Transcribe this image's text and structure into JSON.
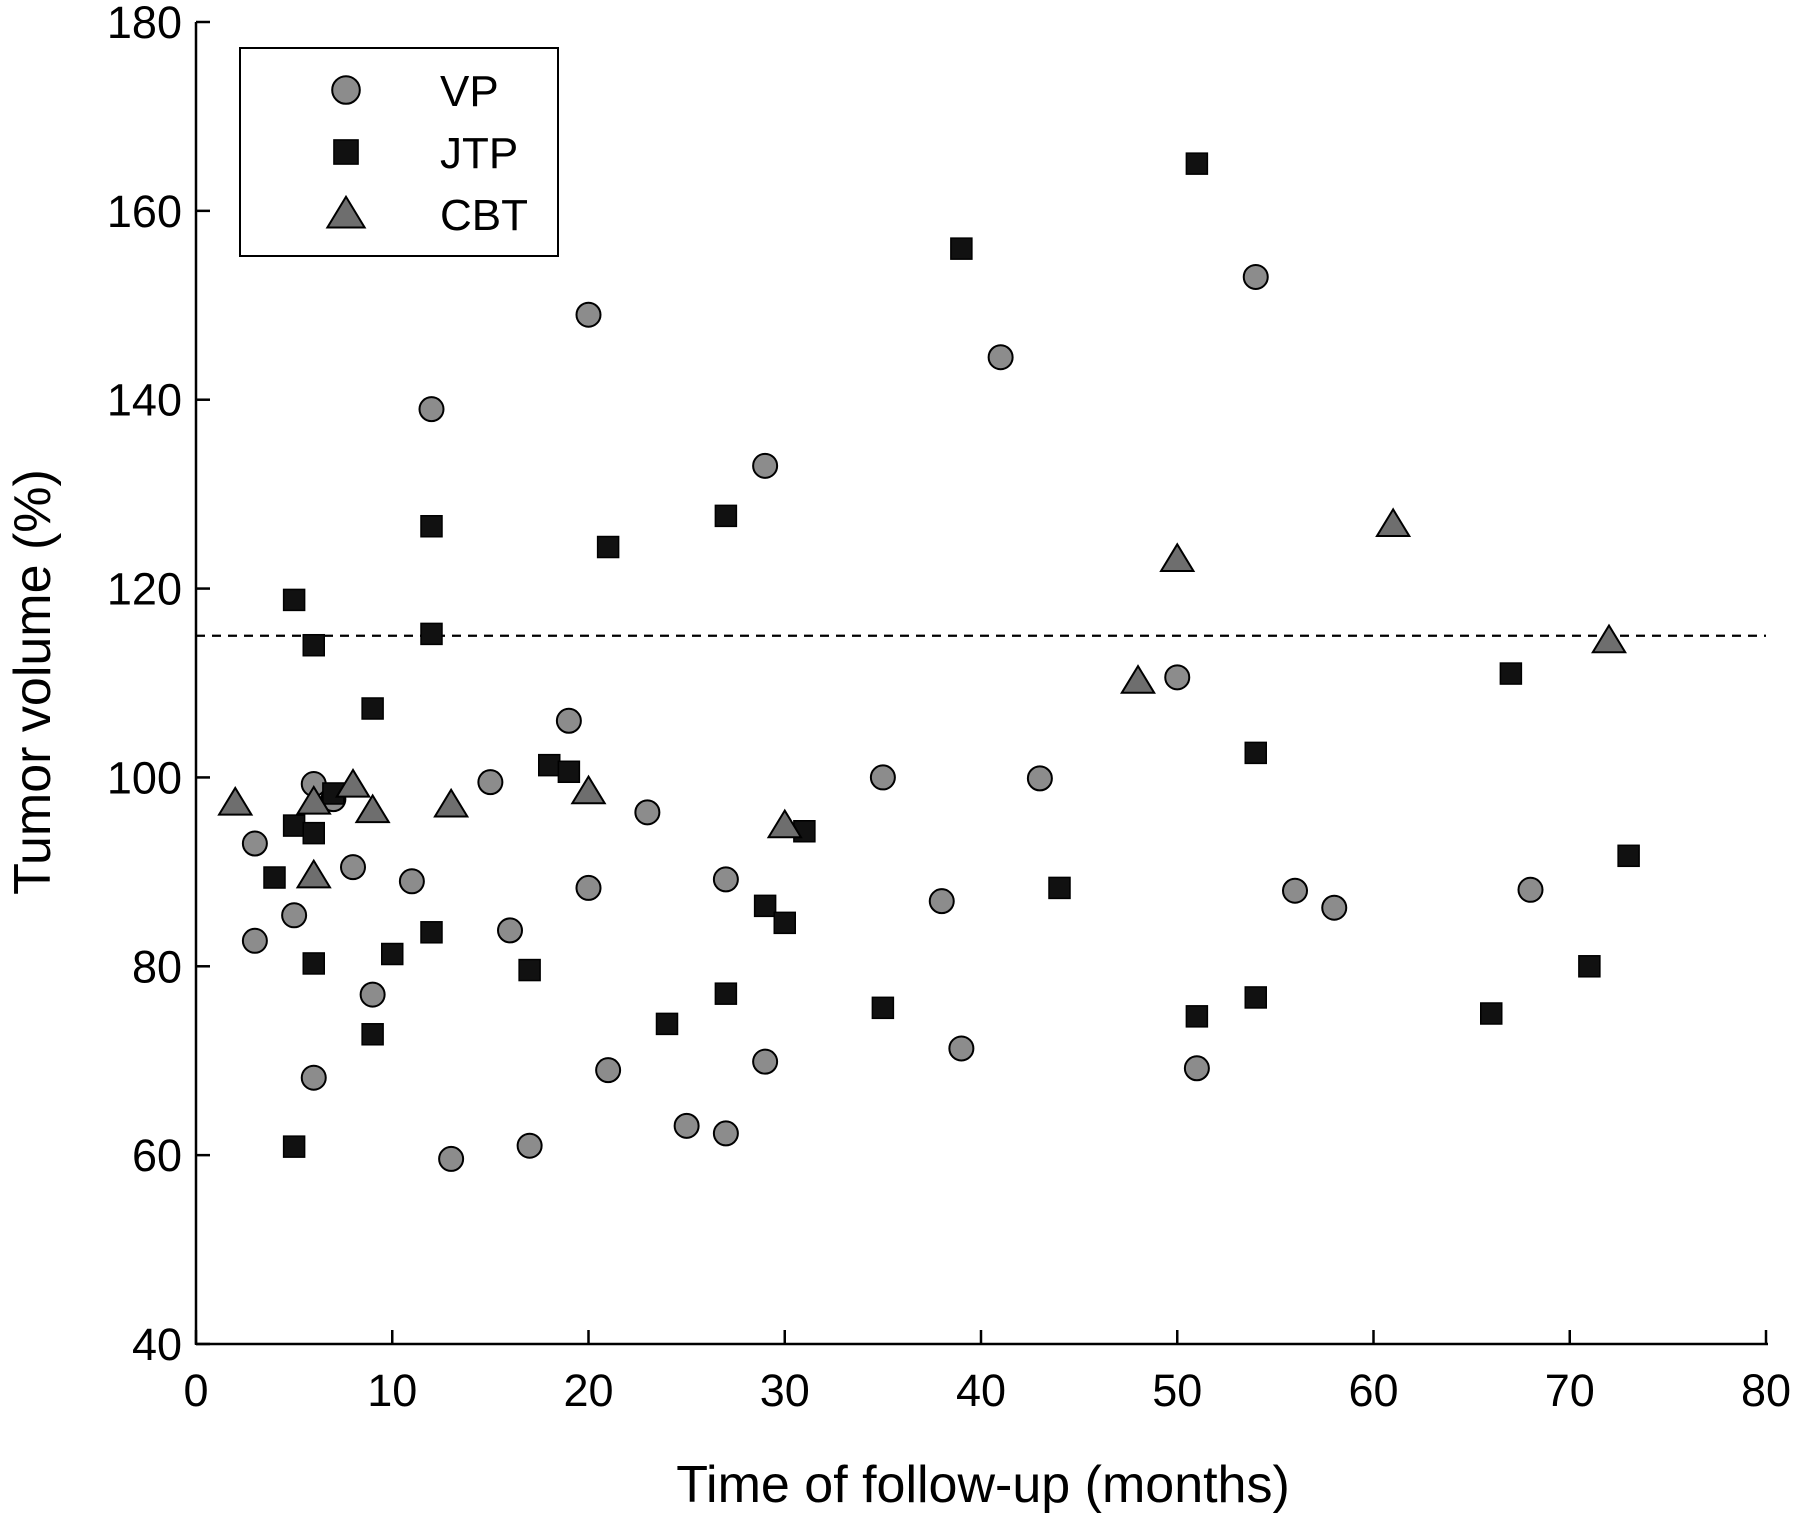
{
  "chart_data": {
    "type": "scatter",
    "title": "",
    "xlabel": "Time of follow-up (months)",
    "ylabel": "Tumor volume (%)",
    "xlim": [
      0,
      80
    ],
    "ylim": [
      40,
      180
    ],
    "xticks": [
      0,
      10,
      20,
      30,
      40,
      50,
      60,
      70,
      80
    ],
    "yticks": [
      40,
      60,
      80,
      100,
      120,
      140,
      160,
      180
    ],
    "grid": false,
    "legend_position": "top-left",
    "reference_line": {
      "y": 115,
      "style": "dashed"
    },
    "series": [
      {
        "name": "VP",
        "marker": "circle",
        "color": "#8c8c8c",
        "points": [
          [
            3,
            93
          ],
          [
            3,
            82.7
          ],
          [
            5,
            85.4
          ],
          [
            6,
            99.3
          ],
          [
            6,
            68.2
          ],
          [
            7,
            97.7
          ],
          [
            8,
            90.5
          ],
          [
            9,
            77
          ],
          [
            11,
            89
          ],
          [
            12,
            139
          ],
          [
            13,
            59.6
          ],
          [
            15,
            99.5
          ],
          [
            16,
            83.8
          ],
          [
            17,
            61
          ],
          [
            19,
            106
          ],
          [
            20,
            149
          ],
          [
            20,
            88.3
          ],
          [
            21,
            69
          ],
          [
            23,
            96.3
          ],
          [
            25,
            63.1
          ],
          [
            27,
            89.2
          ],
          [
            27,
            62.3
          ],
          [
            29,
            133
          ],
          [
            29,
            69.9
          ],
          [
            35,
            100
          ],
          [
            38,
            86.9
          ],
          [
            39,
            71.3
          ],
          [
            41,
            144.5
          ],
          [
            43,
            99.9
          ],
          [
            50,
            110.6
          ],
          [
            51,
            69.2
          ],
          [
            54,
            153
          ],
          [
            56,
            88
          ],
          [
            58,
            86.2
          ],
          [
            68,
            88.1
          ]
        ]
      },
      {
        "name": "JTP",
        "marker": "square",
        "color": "#111111",
        "points": [
          [
            4,
            89.4
          ],
          [
            5,
            118.8
          ],
          [
            5,
            94.9
          ],
          [
            5,
            60.9
          ],
          [
            6,
            114
          ],
          [
            6,
            94.1
          ],
          [
            6,
            80.3
          ],
          [
            7,
            98.3
          ],
          [
            9,
            107.3
          ],
          [
            9,
            72.8
          ],
          [
            10,
            81.3
          ],
          [
            12,
            126.6
          ],
          [
            12,
            115.2
          ],
          [
            12,
            83.6
          ],
          [
            17,
            79.6
          ],
          [
            18,
            101.3
          ],
          [
            19,
            100.6
          ],
          [
            21,
            124.4
          ],
          [
            24,
            73.9
          ],
          [
            27,
            127.7
          ],
          [
            27,
            77.1
          ],
          [
            29,
            86.4
          ],
          [
            30,
            84.6
          ],
          [
            31,
            94.3
          ],
          [
            35,
            75.6
          ],
          [
            39,
            156
          ],
          [
            44,
            88.3
          ],
          [
            51,
            165
          ],
          [
            51,
            74.7
          ],
          [
            54,
            102.6
          ],
          [
            54,
            76.7
          ],
          [
            66,
            75
          ],
          [
            67,
            111
          ],
          [
            71,
            80
          ],
          [
            73,
            91.7
          ]
        ]
      },
      {
        "name": "CBT",
        "marker": "triangle",
        "color": "#6e6e6e",
        "points": [
          [
            2,
            97.3
          ],
          [
            6,
            97.4
          ],
          [
            6,
            89.6
          ],
          [
            8,
            99.2
          ],
          [
            9,
            96.5
          ],
          [
            13,
            97.1
          ],
          [
            20,
            98.5
          ],
          [
            30,
            94.9
          ],
          [
            48,
            110.2
          ],
          [
            50,
            123.1
          ],
          [
            61,
            126.8
          ],
          [
            72,
            114.5
          ]
        ]
      }
    ]
  }
}
